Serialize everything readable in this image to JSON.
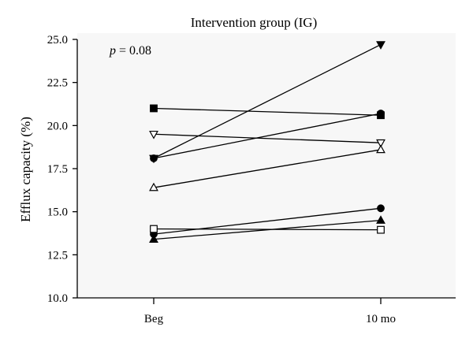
{
  "chart_data": {
    "type": "line",
    "title": "Intervention group (IG)",
    "xlabel": "",
    "ylabel": "Efflux capacity (%)",
    "categories": [
      "Beg",
      "10 mo"
    ],
    "ylim": [
      10.0,
      25.0
    ],
    "yticks": [
      "10.0",
      "12.5",
      "15.0",
      "17.5",
      "20.0",
      "22.5",
      "25.0"
    ],
    "grid": false,
    "legend": "none",
    "annotation": {
      "italic": "p",
      "text": " = 0.08"
    },
    "series": [
      {
        "marker": "triangle-down-filled",
        "values": [
          18.1,
          24.7
        ]
      },
      {
        "marker": "square-filled",
        "values": [
          21.0,
          20.6
        ]
      },
      {
        "marker": "circle-filled",
        "values": [
          18.1,
          20.7
        ]
      },
      {
        "marker": "triangle-down-open",
        "values": [
          19.5,
          19.0
        ]
      },
      {
        "marker": "triangle-up-open",
        "values": [
          16.4,
          18.6
        ]
      },
      {
        "marker": "circle-filled",
        "values": [
          13.7,
          15.2
        ]
      },
      {
        "marker": "triangle-up-filled",
        "values": [
          13.4,
          14.5
        ]
      },
      {
        "marker": "square-open",
        "values": [
          14.0,
          13.95
        ]
      }
    ],
    "colors": {
      "line": "#000000",
      "plot_background": "#f7f7f7",
      "page_background": "#ffffff"
    }
  }
}
